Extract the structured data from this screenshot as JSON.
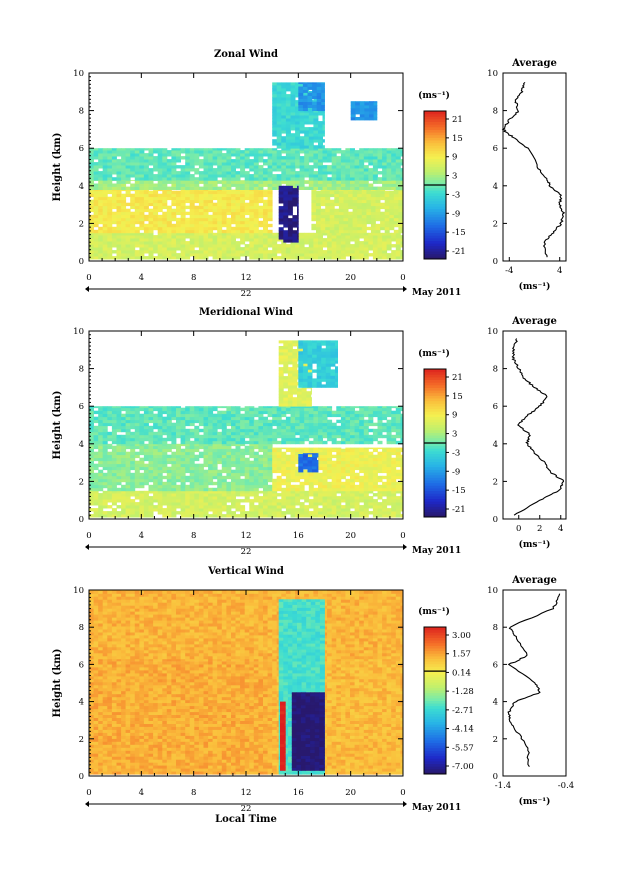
{
  "panels": [
    {
      "id": "zonal",
      "title": "Zonal Wind",
      "ylabel": "Height (km)",
      "y_ticks": [
        "0",
        "2",
        "4",
        "6",
        "8",
        "10"
      ],
      "x_ticks": [
        "0",
        "4",
        "8",
        "12",
        "16",
        "20",
        "0"
      ],
      "date_label": "22",
      "month_label": "May 2011",
      "colorbar": {
        "unit": "(ms⁻¹)",
        "ticks": [
          "21",
          "15",
          "9",
          "3",
          "-3",
          "-9",
          "-15",
          "-21"
        ]
      },
      "profile": {
        "title": "Average",
        "x_ticks": [
          "-4",
          "4"
        ],
        "y_ticks": [
          "0",
          "2",
          "4",
          "6",
          "8",
          "10"
        ],
        "xlabel": "(ms⁻¹)"
      }
    },
    {
      "id": "meridional",
      "title": "Meridional Wind",
      "ylabel": "Height (km)",
      "y_ticks": [
        "0",
        "2",
        "4",
        "6",
        "8",
        "10"
      ],
      "x_ticks": [
        "0",
        "4",
        "8",
        "12",
        "16",
        "20",
        "0"
      ],
      "date_label": "22",
      "month_label": "May 2011",
      "colorbar": {
        "unit": "(ms⁻¹)",
        "ticks": [
          "21",
          "15",
          "9",
          "3",
          "-3",
          "-9",
          "-15",
          "-21"
        ]
      },
      "profile": {
        "title": "Average",
        "x_ticks": [
          "0",
          "2",
          "4"
        ],
        "y_ticks": [
          "0",
          "2",
          "4",
          "6",
          "8",
          "10"
        ],
        "xlabel": "(ms⁻¹)"
      }
    },
    {
      "id": "vertical",
      "title": "Vertical Wind",
      "ylabel": "Height (km)",
      "xlabel": "Local Time",
      "y_ticks": [
        "0",
        "2",
        "4",
        "6",
        "8",
        "10"
      ],
      "x_ticks": [
        "0",
        "4",
        "8",
        "12",
        "16",
        "20",
        "0"
      ],
      "date_label": "22",
      "month_label": "May 2011",
      "colorbar": {
        "unit": "(ms⁻¹)",
        "ticks": [
          "3.00",
          "1.57",
          "0.14",
          "-1.28",
          "-2.71",
          "-4.14",
          "-5.57",
          "-7.00"
        ]
      },
      "profile": {
        "title": "Average",
        "x_ticks": [
          "-1.4",
          "-0.4"
        ],
        "y_ticks": [
          "0",
          "2",
          "4",
          "6",
          "8",
          "10"
        ],
        "xlabel": "(ms⁻¹)"
      }
    }
  ],
  "chart_data": [
    {
      "type": "heatmap",
      "title": "Zonal Wind",
      "ylabel": "Height (km)",
      "xlim": [
        0,
        24
      ],
      "ylim": [
        0,
        10
      ],
      "colorbar_range": [
        -21,
        21
      ],
      "data_regions": [
        {
          "t0": 0,
          "t1": 24,
          "h0": 0.1,
          "h1": 1.5,
          "value": 5
        },
        {
          "t0": 0,
          "t1": 14,
          "h0": 1.5,
          "h1": 3.8,
          "value": 8
        },
        {
          "t0": 17,
          "t1": 24,
          "h0": 1.5,
          "h1": 3.8,
          "value": 5
        },
        {
          "t0": 0,
          "t1": 24,
          "h0": 3.8,
          "h1": 4.3,
          "value": 2
        },
        {
          "t0": 0,
          "t1": 24,
          "h0": 4.3,
          "h1": 6.0,
          "value": -1
        },
        {
          "t0": 14.5,
          "t1": 16,
          "h0": 1.0,
          "h1": 4.0,
          "value": -20
        },
        {
          "t0": 14,
          "t1": 18,
          "h0": 6.0,
          "h1": 9.5,
          "value": -3
        },
        {
          "t0": 16,
          "t1": 18,
          "h0": 8.0,
          "h1": 9.5,
          "value": -9
        },
        {
          "t0": 20,
          "t1": 22,
          "h0": 7.5,
          "h1": 8.5,
          "value": -9
        }
      ]
    },
    {
      "type": "line",
      "title": "Average",
      "xlim": [
        -5,
        5
      ],
      "ylim": [
        0,
        10
      ],
      "x": [
        2.0,
        1.5,
        3.0,
        4.2,
        4.6,
        4.0,
        4.2,
        2.5,
        2.0,
        0.5,
        -1.0,
        -3.5,
        -5.0,
        -4.0,
        -2.5,
        -3.0,
        -2.0,
        -1.5
      ],
      "y": [
        0.2,
        1.0,
        1.5,
        2.0,
        2.5,
        3.0,
        3.5,
        4.0,
        4.3,
        5.0,
        6.0,
        6.6,
        7.0,
        7.5,
        8.0,
        8.5,
        9.0,
        9.5
      ]
    },
    {
      "type": "heatmap",
      "title": "Meridional Wind",
      "ylabel": "Height (km)",
      "xlim": [
        0,
        24
      ],
      "ylim": [
        0,
        10
      ],
      "colorbar_range": [
        -21,
        21
      ],
      "data_regions": [
        {
          "t0": 0,
          "t1": 24,
          "h0": 0.1,
          "h1": 1.5,
          "value": 5
        },
        {
          "t0": 0,
          "t1": 14,
          "h0": 1.5,
          "h1": 4.0,
          "value": 1
        },
        {
          "t0": 14,
          "t1": 24,
          "h0": 1.5,
          "h1": 3.8,
          "value": 7
        },
        {
          "t0": 0,
          "t1": 24,
          "h0": 4.0,
          "h1": 6.0,
          "value": -1
        },
        {
          "t0": 14.5,
          "t1": 17,
          "h0": 6.0,
          "h1": 9.5,
          "value": 6
        },
        {
          "t0": 16,
          "t1": 19,
          "h0": 7.0,
          "h1": 9.5,
          "value": -4
        },
        {
          "t0": 16,
          "t1": 17.5,
          "h0": 2.5,
          "h1": 3.5,
          "value": -12
        }
      ]
    },
    {
      "type": "line",
      "title": "Average",
      "xlim": [
        -1.5,
        4.5
      ],
      "ylim": [
        0,
        10
      ],
      "x": [
        -0.5,
        2.0,
        3.8,
        4.3,
        3.0,
        2.5,
        1.5,
        0.8,
        1.0,
        0.0,
        0.8,
        2.0,
        2.8,
        1.5,
        0.5,
        0.0,
        -0.5,
        -0.5,
        -0.2
      ],
      "y": [
        0.2,
        1.0,
        1.5,
        2.0,
        2.5,
        3.0,
        3.5,
        4.0,
        4.5,
        5.0,
        5.5,
        6.0,
        6.5,
        7.0,
        7.5,
        8.0,
        8.5,
        9.0,
        9.6
      ]
    },
    {
      "type": "heatmap",
      "title": "Vertical Wind",
      "ylabel": "Height (km)",
      "xlabel": "Local Time",
      "xlim": [
        0,
        24
      ],
      "ylim": [
        0,
        10
      ],
      "colorbar_range": [
        -7.0,
        3.0
      ],
      "data_regions": [
        {
          "t0": 0,
          "t1": 14,
          "h0": 0.1,
          "h1": 6.3,
          "value": 1.0
        },
        {
          "t0": 14,
          "t1": 24,
          "h0": 0.1,
          "h1": 6.3,
          "value": 0.8
        },
        {
          "t0": 0,
          "t1": 24,
          "h0": 6.3,
          "h1": 10,
          "value": 0.9
        },
        {
          "t0": 14.5,
          "t1": 18,
          "h0": 0.1,
          "h1": 9.5,
          "value": -2.5
        },
        {
          "t0": 15.5,
          "t1": 18,
          "h0": 0.3,
          "h1": 4.5,
          "value": -7.0
        },
        {
          "t0": 14.6,
          "t1": 15.0,
          "h0": 0.3,
          "h1": 4.0,
          "value": 3.0
        }
      ]
    },
    {
      "type": "line",
      "title": "Average",
      "xlim": [
        -1.4,
        -0.4
      ],
      "ylim": [
        0,
        10
      ],
      "x": [
        -1.0,
        -1.0,
        -1.2,
        -1.3,
        -1.3,
        -1.2,
        -0.8,
        -0.9,
        -1.3,
        -1.0,
        -1.2,
        -1.3,
        -0.6,
        -0.5
      ],
      "y": [
        0.5,
        1.5,
        2.5,
        3.0,
        3.5,
        4.0,
        4.5,
        5.0,
        6.0,
        6.5,
        7.5,
        8.0,
        9.0,
        9.8
      ]
    }
  ]
}
